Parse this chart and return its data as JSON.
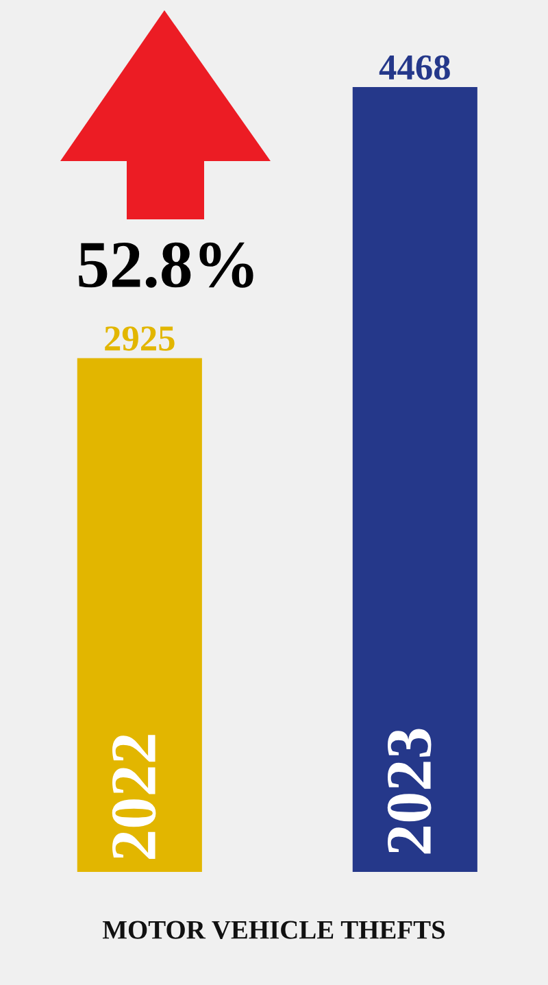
{
  "chart_data": {
    "type": "bar",
    "xlabel": "MOTOR VEHICLE THEFTS",
    "categories": [
      "2022",
      "2023"
    ],
    "values": [
      2925,
      4468
    ],
    "colors": [
      "#e2b600",
      "#25388a"
    ],
    "data_labels": true,
    "annotations": [
      "52.8%"
    ]
  }
}
